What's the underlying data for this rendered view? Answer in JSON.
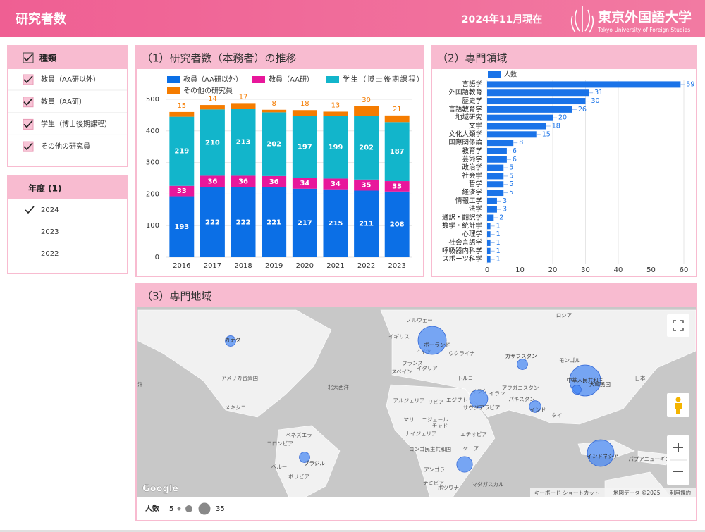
{
  "header": {
    "title": "研究者数",
    "as_of": "2024年11月現在",
    "logo": "東京外国語大学",
    "logo_en": "Tokyo University of Foreign Studies"
  },
  "filters": [
    {
      "title": "種類",
      "items": [
        "教員（AA研以外）",
        "教員（AA研）",
        "学生（博士後期課程）",
        "その他の研究員"
      ],
      "checked": [
        true,
        true,
        true,
        true
      ]
    },
    {
      "title": "年度 (1)",
      "items": [
        "2024",
        "2023",
        "2022"
      ],
      "checked": [
        true,
        false,
        false
      ]
    }
  ],
  "chart_data": [
    {
      "type": "stacked_bar",
      "title": "（1）研究者数（本務者）の推移",
      "categories": [
        "2016",
        "2017",
        "2018",
        "2019",
        "2020",
        "2021",
        "2022",
        "2023"
      ],
      "series": [
        {
          "name": "教員（AA研以外）",
          "color": "#0b6fe6",
          "values": [
            193,
            222,
            222,
            221,
            217,
            215,
            211,
            208
          ]
        },
        {
          "name": "教員（AA研）",
          "color": "#e8179b",
          "values": [
            33,
            36,
            36,
            36,
            34,
            34,
            35,
            33
          ]
        },
        {
          "name": "学生（博士後期課程）",
          "color": "#12b5cb",
          "values": [
            219,
            210,
            213,
            202,
            197,
            199,
            202,
            187
          ]
        },
        {
          "name": "その他の研究員",
          "color": "#f57c00",
          "values": [
            15,
            14,
            17,
            8,
            18,
            13,
            30,
            21
          ]
        }
      ],
      "ylim": [
        0,
        500
      ],
      "yticks": [
        0,
        100,
        200,
        300,
        400,
        500
      ],
      "grid": true,
      "legend": "top"
    },
    {
      "type": "hbar",
      "title": "（2）専門領域",
      "categories": [
        "言語学",
        "外国語教育",
        "歴史学",
        "言語教育学",
        "地域研究",
        "文学",
        "文化人類学",
        "国際関係論",
        "教育学",
        "芸術学",
        "政治学",
        "社会学",
        "哲学",
        "経済学",
        "情報工学",
        "法学",
        "通訳・翻訳学",
        "数学・統計学",
        "心理学",
        "社会言語学",
        "呼吸器内科学",
        "スポーツ科学"
      ],
      "series": [
        {
          "name": "人数",
          "color": "#1a73e8",
          "values": [
            59,
            31,
            30,
            26,
            20,
            18,
            15,
            8,
            6,
            6,
            5,
            5,
            5,
            5,
            3,
            3,
            2,
            1,
            1,
            1,
            1,
            1
          ]
        }
      ],
      "xlim": [
        0,
        60
      ],
      "xticks": [
        0,
        10,
        20,
        30,
        40,
        50,
        60
      ],
      "grid": true,
      "legend": "top"
    },
    {
      "type": "bubble_map",
      "title": "（3）専門地域",
      "categories": [
        "カナダ",
        "ポーランド",
        "カザフスタン",
        "中華人民共和国",
        "大韓民国",
        "インドネシア",
        "サウジアラビア",
        "インド",
        "ブラジル",
        null
      ],
      "values": [
        4,
        29,
        4,
        35,
        3,
        26,
        12,
        5,
        4,
        9
      ],
      "color": "#4285f4",
      "size_legend": {
        "title": "人数",
        "min": 5,
        "max": 35
      },
      "places": [
        "ロシア",
        "ノルウェー",
        "イギリス",
        "ドイツ",
        "ウクライナ",
        "フランス",
        "スペイン",
        "イタリア",
        "モンゴル",
        "アメリカ合衆国",
        "北大西洋",
        "トルコ",
        "イラク",
        "イラン",
        "アフガニスタン",
        "日本",
        "メキシコ",
        "アルジェリア",
        "リビア",
        "エジプト",
        "パキスタン",
        "タイ",
        "マリ",
        "ニジェール",
        "チャド",
        "ナイジェリア",
        "エチオピア",
        "ベネズエラ",
        "コロンビア",
        "ケニア",
        "コンゴ民主共和国",
        "ペルー",
        "アンゴラ",
        "ボリビア",
        "ナミビア",
        "ボツワナ",
        "マダガスカル",
        "パプアニューギニア",
        "洋"
      ]
    }
  ],
  "map": {
    "attribution": "Google",
    "shortcuts": "キーボード ショートカット",
    "map_data": "地図データ ©2025",
    "terms": "利用規約"
  }
}
